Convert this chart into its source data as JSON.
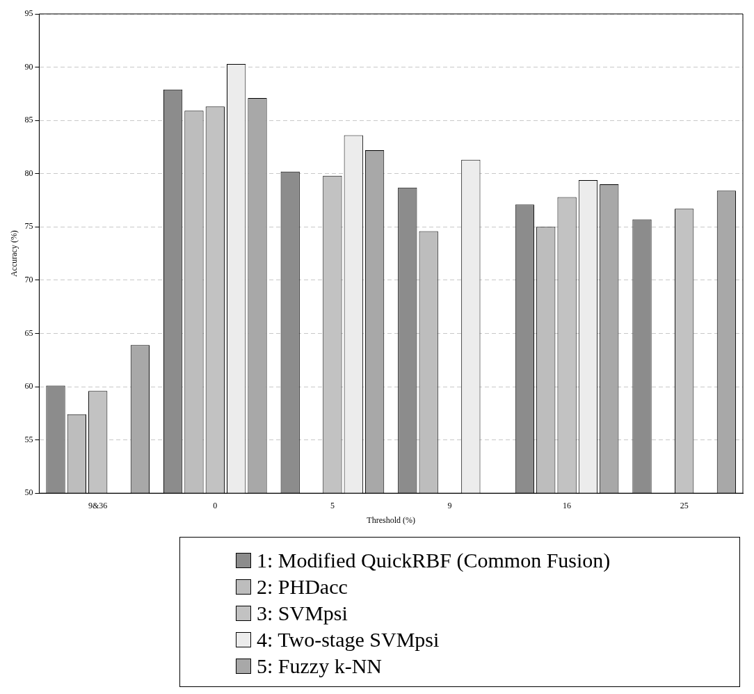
{
  "chart_data": {
    "type": "bar",
    "xlabel": "Threshold (%)",
    "ylabel": "Accuracy (%)",
    "categories": [
      "9&36",
      "0",
      "5",
      "9",
      "16",
      "25"
    ],
    "series": [
      {
        "name": "1: Modified QuickRBF (Common Fusion)",
        "color": "#8c8c8c",
        "values": [
          60.1,
          87.9,
          80.2,
          78.7,
          77.1,
          75.7
        ]
      },
      {
        "name": "2: PHDacc",
        "color": "#bdbdbd",
        "values": [
          57.4,
          85.9,
          null,
          74.6,
          75.0,
          null
        ]
      },
      {
        "name": "3: SVMpsi",
        "color": "#c2c2c2",
        "values": [
          59.6,
          86.3,
          79.8,
          null,
          77.8,
          76.7
        ]
      },
      {
        "name": "4: Two-stage SVMpsi",
        "color": "#ececec",
        "values": [
          null,
          90.3,
          83.6,
          81.3,
          79.4,
          null
        ]
      },
      {
        "name": "5: Fuzzy k-NN",
        "color": "#a8a8a8",
        "values": [
          63.9,
          87.1,
          82.2,
          null,
          79.0,
          78.4
        ]
      }
    ],
    "ylim": [
      50,
      95
    ],
    "yticks": [
      50,
      55,
      60,
      65,
      70,
      75,
      80,
      85,
      90,
      95
    ],
    "grid": "y",
    "legend": "bottom"
  }
}
